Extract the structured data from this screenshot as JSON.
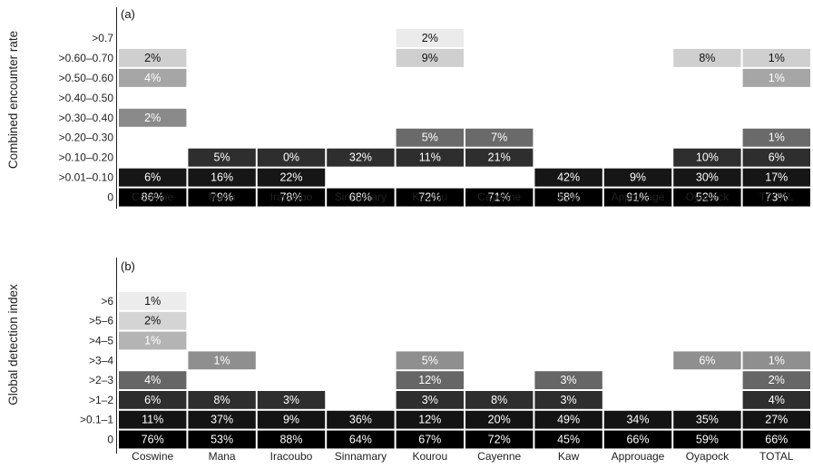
{
  "chart_data": [
    {
      "type": "heatmap",
      "panel_label": "(a)",
      "ylabel": "Combined encounter rate",
      "categories": [
        "Coswine",
        "Mana",
        "Iracoubo",
        "Sinnamary",
        "Kourou",
        "Cayenne",
        "Kaw",
        "Approuage",
        "Oyapock",
        "TOTAL"
      ],
      "rows": [
        ">0.7",
        ">0.60–0.70",
        ">0.50–0.60",
        ">0.40–0.50",
        ">0.30–0.40",
        ">0.20–0.30",
        ">0.10–0.20",
        ">0.01–0.10",
        "0"
      ],
      "values": [
        [
          null,
          null,
          null,
          null,
          2,
          null,
          null,
          null,
          null,
          null
        ],
        [
          2,
          null,
          null,
          null,
          9,
          null,
          null,
          null,
          8,
          1
        ],
        [
          4,
          null,
          null,
          null,
          null,
          null,
          null,
          null,
          null,
          1
        ],
        [
          null,
          null,
          null,
          null,
          null,
          null,
          null,
          null,
          null,
          null
        ],
        [
          2,
          null,
          null,
          null,
          null,
          null,
          null,
          null,
          null,
          null
        ],
        [
          null,
          null,
          null,
          null,
          5,
          7,
          null,
          null,
          null,
          1
        ],
        [
          null,
          5,
          0,
          32,
          11,
          21,
          null,
          null,
          10,
          6
        ],
        [
          6,
          16,
          22,
          null,
          null,
          null,
          42,
          9,
          30,
          17
        ],
        [
          86,
          79,
          78,
          68,
          72,
          71,
          58,
          91,
          52,
          73
        ]
      ],
      "labels": [
        [
          null,
          null,
          null,
          null,
          "2%",
          null,
          null,
          null,
          null,
          null
        ],
        [
          "2%",
          null,
          null,
          null,
          "9%",
          null,
          null,
          null,
          "8%",
          "1%"
        ],
        [
          "4%",
          null,
          null,
          null,
          null,
          null,
          null,
          null,
          null,
          "1%"
        ],
        [
          null,
          null,
          null,
          null,
          null,
          null,
          null,
          null,
          null,
          null
        ],
        [
          "2%",
          null,
          null,
          null,
          null,
          null,
          null,
          null,
          null,
          null
        ],
        [
          null,
          null,
          null,
          null,
          "5%",
          "7%",
          null,
          null,
          null,
          "1%"
        ],
        [
          null,
          "5%",
          "0%",
          "32%",
          "11%",
          "21%",
          null,
          null,
          "10%",
          "6%"
        ],
        [
          "6%",
          "16%",
          "22%",
          null,
          null,
          null,
          "42%",
          "9%",
          "30%",
          "17%"
        ],
        [
          "86%",
          "79%",
          "78%",
          "68%",
          "72%",
          "71%",
          "58%",
          "91%",
          "52%",
          "73%"
        ]
      ],
      "row_shades": [
        "#ebebeb",
        "#cfcfcf",
        "#a6a6a6",
        "#8a8a8a",
        "#8a8a8a",
        "#6a6a6a",
        "#2e2e2e",
        "#161616",
        "#000000"
      ]
    },
    {
      "type": "heatmap",
      "panel_label": "(b)",
      "ylabel": "Global detection index",
      "categories": [
        "Coswine",
        "Mana",
        "Iracoubo",
        "Sinnamary",
        "Kourou",
        "Cayenne",
        "Kaw",
        "Approuage",
        "Oyapock",
        "TOTAL"
      ],
      "rows": [
        ">6",
        ">5–6",
        ">4–5",
        ">3–4",
        ">2–3",
        ">1–2",
        ">0.1–1",
        "0"
      ],
      "values": [
        [
          1,
          null,
          null,
          null,
          null,
          null,
          null,
          null,
          null,
          null
        ],
        [
          2,
          null,
          null,
          null,
          null,
          null,
          null,
          null,
          null,
          null
        ],
        [
          1,
          null,
          null,
          null,
          null,
          null,
          null,
          null,
          null,
          null
        ],
        [
          null,
          1,
          null,
          null,
          5,
          null,
          null,
          null,
          6,
          1
        ],
        [
          4,
          null,
          null,
          null,
          12,
          null,
          3,
          null,
          null,
          2
        ],
        [
          6,
          8,
          3,
          null,
          3,
          8,
          3,
          null,
          null,
          4
        ],
        [
          11,
          37,
          9,
          36,
          12,
          20,
          49,
          34,
          35,
          27
        ],
        [
          76,
          53,
          88,
          64,
          67,
          72,
          45,
          66,
          59,
          66
        ]
      ],
      "labels": [
        [
          "1%",
          null,
          null,
          null,
          null,
          null,
          null,
          null,
          null,
          null
        ],
        [
          "2%",
          null,
          null,
          null,
          null,
          null,
          null,
          null,
          null,
          null
        ],
        [
          "1%",
          null,
          null,
          null,
          null,
          null,
          null,
          null,
          null,
          null
        ],
        [
          null,
          "1%",
          null,
          null,
          "5%",
          null,
          null,
          null,
          "6%",
          "1%"
        ],
        [
          "4%",
          null,
          null,
          null,
          "12%",
          null,
          "3%",
          null,
          null,
          "2%"
        ],
        [
          "6%",
          "8%",
          "3%",
          null,
          "3%",
          "8%",
          "3%",
          null,
          null,
          "4%"
        ],
        [
          "11%",
          "37%",
          "9%",
          "36%",
          "12%",
          "20%",
          "49%",
          "34%",
          "35%",
          "27%"
        ],
        [
          "76%",
          "53%",
          "88%",
          "64%",
          "67%",
          "72%",
          "45%",
          "66%",
          "59%",
          "66%"
        ]
      ],
      "row_shades": [
        "#ececec",
        "#d4d4d4",
        "#b4b4b4",
        "#8f8f8f",
        "#666666",
        "#2e2e2e",
        "#141414",
        "#000000"
      ]
    }
  ]
}
